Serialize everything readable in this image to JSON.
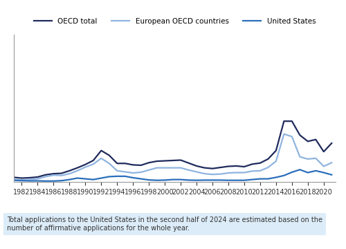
{
  "chart_data": {
    "type": "line",
    "note": "Total applications to the United States in the second half of 2024 are estimated based on the number of affirmative applications for the whole year.",
    "x": [
      1981,
      1982,
      1983,
      1984,
      1985,
      1986,
      1987,
      1988,
      1989,
      1990,
      1991,
      1992,
      1993,
      1994,
      1995,
      1996,
      1997,
      1998,
      1999,
      2000,
      2001,
      2002,
      2003,
      2004,
      2005,
      2006,
      2007,
      2008,
      2009,
      2010,
      2011,
      2012,
      2013,
      2014,
      2015,
      2016,
      2017,
      2018,
      2019,
      2020,
      2021
    ],
    "series": [
      {
        "name": "OECD total",
        "color": "#1f2a5c",
        "values": [
          120,
          100,
          110,
          130,
          190,
          220,
          230,
          300,
          380,
          470,
          580,
          850,
          720,
          500,
          500,
          460,
          450,
          520,
          560,
          570,
          580,
          590,
          510,
          430,
          380,
          360,
          390,
          420,
          430,
          410,
          480,
          510,
          620,
          850,
          1650,
          1650,
          1270,
          1100,
          1150,
          820,
          1050
        ]
      },
      {
        "name": "European OECD countries",
        "color": "#8fb4e0",
        "values": [
          60,
          50,
          60,
          80,
          140,
          180,
          170,
          220,
          300,
          400,
          480,
          640,
          500,
          300,
          270,
          240,
          260,
          320,
          380,
          380,
          380,
          380,
          320,
          270,
          220,
          200,
          210,
          240,
          250,
          250,
          290,
          300,
          390,
          560,
          1300,
          1230,
          680,
          620,
          640,
          420,
          520
        ]
      },
      {
        "name": "United States",
        "color": "#2a6ebb",
        "values": [
          40,
          30,
          25,
          25,
          20,
          20,
          30,
          60,
          100,
          80,
          60,
          100,
          140,
          150,
          150,
          110,
          80,
          50,
          40,
          45,
          60,
          60,
          45,
          40,
          45,
          45,
          45,
          40,
          40,
          40,
          60,
          80,
          80,
          120,
          170,
          260,
          330,
          250,
          300,
          250,
          190
        ]
      }
    ],
    "xlim": [
      1981,
      2021.5
    ],
    "xticks": [
      1982,
      1984,
      1986,
      1988,
      1990,
      1992,
      1994,
      1996,
      1998,
      2000,
      2002,
      2004,
      2006,
      2008,
      2010,
      2012,
      2014,
      2016,
      2018,
      2020
    ],
    "ylim": [
      0,
      4000
    ],
    "yticks": [
      0,
      1000,
      2000,
      3000,
      4000
    ],
    "grid": false,
    "legend": "upper center",
    "tick_labels": "x"
  }
}
